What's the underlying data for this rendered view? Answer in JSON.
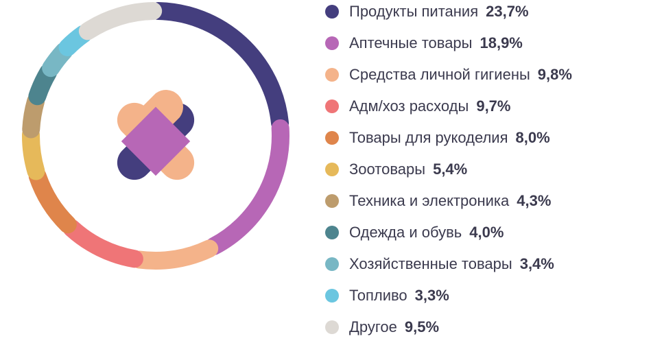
{
  "chart_data": {
    "type": "pie",
    "title": "",
    "categories": [
      "Продукты питания",
      "Аптечные товары",
      "Средства личной гигиены",
      "Адм/хоз расходы",
      "Товары для рукоделия",
      "Зоотовары",
      "Техника и электроника",
      "Одежда и обувь",
      "Хозяйственные товары",
      "Топливо",
      "Другое"
    ],
    "values": [
      23.7,
      18.9,
      9.8,
      9.7,
      8.0,
      5.4,
      4.3,
      4.0,
      3.4,
      3.3,
      9.5
    ],
    "value_labels": [
      "23,7%",
      "18,9%",
      "9,8%",
      "9,7%",
      "8,0%",
      "5,4%",
      "4,3%",
      "4,0%",
      "3,4%",
      "3,3%",
      "9,5%"
    ],
    "colors": [
      "#443e7e",
      "#b767b6",
      "#f4b38a",
      "#ef7577",
      "#df854b",
      "#e6b95a",
      "#bd9c6d",
      "#4d848e",
      "#78b7c4",
      "#6bc6e0",
      "#ddd9d4"
    ],
    "legend_position": "right",
    "donut": true
  },
  "center_logo": {
    "icon": "crossed-bandage-icon",
    "colors": [
      "#f4b38a",
      "#443e7e",
      "#b767b6"
    ]
  }
}
